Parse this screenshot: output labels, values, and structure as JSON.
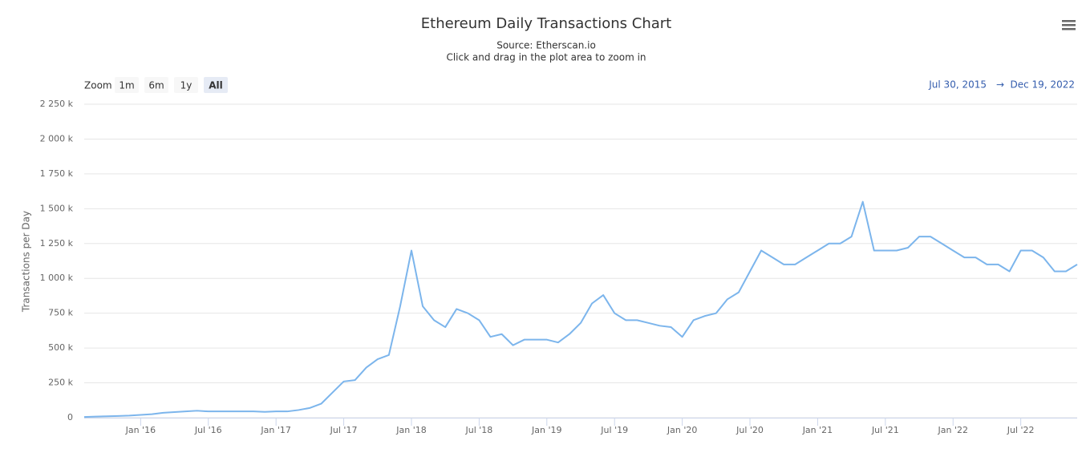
{
  "chart_data": {
    "type": "line",
    "title": "Ethereum Daily Transactions Chart",
    "subtitle": "Source: Etherscan.io",
    "caption": "Click and drag in the plot area to zoom in",
    "zoom_label": "Zoom",
    "zoom_buttons": [
      "1m",
      "6m",
      "1y",
      "All"
    ],
    "range_from": "Jul 30, 2015",
    "range_arrow": "→",
    "range_to": "Dec 19, 2022",
    "y_label": "Transactions per Day",
    "grid": true,
    "x": [
      "2015-08",
      "2015-09",
      "2015-10",
      "2015-11",
      "2015-12",
      "2016-01",
      "2016-02",
      "2016-03",
      "2016-04",
      "2016-05",
      "2016-06",
      "2016-07",
      "2016-08",
      "2016-09",
      "2016-10",
      "2016-11",
      "2016-12",
      "2017-01",
      "2017-02",
      "2017-03",
      "2017-04",
      "2017-05",
      "2017-06",
      "2017-07",
      "2017-08",
      "2017-09",
      "2017-10",
      "2017-11",
      "2017-12",
      "2018-01",
      "2018-02",
      "2018-03",
      "2018-04",
      "2018-05",
      "2018-06",
      "2018-07",
      "2018-08",
      "2018-09",
      "2018-10",
      "2018-11",
      "2018-12",
      "2019-01",
      "2019-02",
      "2019-03",
      "2019-04",
      "2019-05",
      "2019-06",
      "2019-07",
      "2019-08",
      "2019-09",
      "2019-10",
      "2019-11",
      "2019-12",
      "2020-01",
      "2020-02",
      "2020-03",
      "2020-04",
      "2020-05",
      "2020-06",
      "2020-07",
      "2020-08",
      "2020-09",
      "2020-10",
      "2020-11",
      "2020-12",
      "2021-01",
      "2021-02",
      "2021-03",
      "2021-04",
      "2021-05",
      "2021-06",
      "2021-07",
      "2021-08",
      "2021-09",
      "2021-10",
      "2021-11",
      "2021-12",
      "2022-01",
      "2022-02",
      "2022-03",
      "2022-04",
      "2022-05",
      "2022-06",
      "2022-07",
      "2022-08",
      "2022-09",
      "2022-10",
      "2022-11",
      "2022-12"
    ],
    "series": [
      {
        "name": "Transactions per Day",
        "color": "#7cb5ec",
        "values": [
          5000,
          8000,
          10000,
          12000,
          15000,
          20000,
          25000,
          35000,
          40000,
          45000,
          50000,
          45000,
          45000,
          45000,
          45000,
          45000,
          42000,
          45000,
          45000,
          55000,
          70000,
          100000,
          180000,
          260000,
          270000,
          360000,
          420000,
          450000,
          800000,
          1200000,
          800000,
          700000,
          650000,
          780000,
          750000,
          700000,
          580000,
          600000,
          520000,
          560000,
          560000,
          560000,
          540000,
          600000,
          680000,
          820000,
          880000,
          750000,
          700000,
          700000,
          680000,
          660000,
          650000,
          580000,
          700000,
          730000,
          750000,
          850000,
          900000,
          1050000,
          1200000,
          1150000,
          1100000,
          1100000,
          1150000,
          1200000,
          1250000,
          1250000,
          1300000,
          1550000,
          1200000,
          1200000,
          1200000,
          1220000,
          1300000,
          1300000,
          1250000,
          1200000,
          1150000,
          1150000,
          1100000,
          1100000,
          1050000,
          1200000,
          1200000,
          1150000,
          1050000,
          1050000,
          1100000
        ]
      }
    ],
    "xlim": [
      "2015-08",
      "2022-12"
    ],
    "xticks": [
      {
        "value": "2016-01",
        "label": "Jan '16"
      },
      {
        "value": "2016-07",
        "label": "Jul '16"
      },
      {
        "value": "2017-01",
        "label": "Jan '17"
      },
      {
        "value": "2017-07",
        "label": "Jul '17"
      },
      {
        "value": "2018-01",
        "label": "Jan '18"
      },
      {
        "value": "2018-07",
        "label": "Jul '18"
      },
      {
        "value": "2019-01",
        "label": "Jan '19"
      },
      {
        "value": "2019-07",
        "label": "Jul '19"
      },
      {
        "value": "2020-01",
        "label": "Jan '20"
      },
      {
        "value": "2020-07",
        "label": "Jul '20"
      },
      {
        "value": "2021-01",
        "label": "Jan '21"
      },
      {
        "value": "2021-07",
        "label": "Jul '21"
      },
      {
        "value": "2022-01",
        "label": "Jan '22"
      },
      {
        "value": "2022-07",
        "label": "Jul '22"
      }
    ],
    "ylim": [
      0,
      2250000
    ],
    "yticks": [
      0,
      {
        "value": 250000,
        "label": "250 k"
      },
      {
        "value": 500000,
        "label": "500 k"
      },
      {
        "value": 750000,
        "label": "750 k"
      },
      {
        "value": 1000000,
        "label": "1 000 k"
      },
      {
        "value": 1250000,
        "label": "1 250 k"
      },
      {
        "value": 1500000,
        "label": "1 500 k"
      },
      {
        "value": 1750000,
        "label": "1 750 k"
      },
      {
        "value": 2000000,
        "label": "2 000 k"
      },
      {
        "value": 2250000,
        "label": "2 250 k"
      }
    ]
  }
}
